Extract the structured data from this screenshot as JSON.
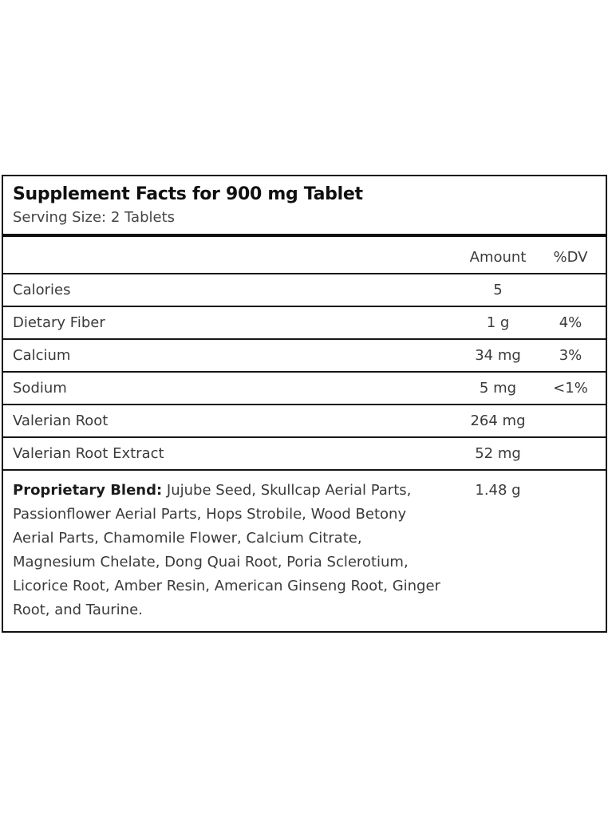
{
  "panel": {
    "title": "Supplement Facts for 900 mg Tablet",
    "serving_size": "Serving Size: 2 Tablets"
  },
  "table": {
    "headers": {
      "name": "",
      "amount": "Amount",
      "dv": "%DV"
    },
    "rows": [
      {
        "name": "Calories",
        "amount": "5",
        "dv": ""
      },
      {
        "name": "Dietary Fiber",
        "amount": "1 g",
        "dv": "4%"
      },
      {
        "name": "Calcium",
        "amount": "34 mg",
        "dv": "3%"
      },
      {
        "name": "Sodium",
        "amount": "5 mg",
        "dv": "<1%"
      },
      {
        "name": "Valerian Root",
        "amount": "264 mg",
        "dv": ""
      },
      {
        "name": "Valerian Root Extract",
        "amount": "52 mg",
        "dv": ""
      }
    ],
    "blend": {
      "label": "Proprietary Blend:",
      "text": " Jujube Seed, Skullcap Aerial Parts, Passionflower Aerial Parts, Hops Strobile, Wood Betony Aerial Parts, Chamomile Flower, Calcium Citrate, Magnesium Chelate, Dong Quai Root, Poria Sclerotium, Licorice Root, Amber Resin, American Ginseng Root, Ginger Root, and Taurine.",
      "amount": "1.48 g",
      "dv": ""
    }
  },
  "colors": {
    "panel_border": "#101010",
    "divider": "#161616",
    "body_text": "#3a3a3a",
    "title_text": "#101010",
    "background": "#ffffff"
  }
}
